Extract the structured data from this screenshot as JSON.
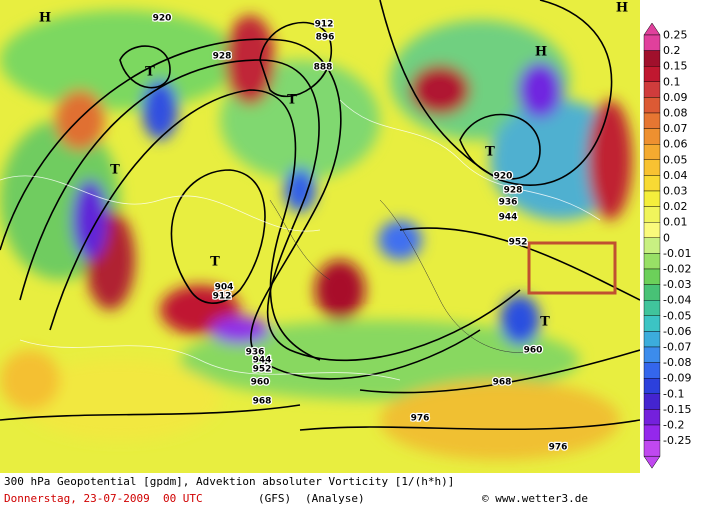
{
  "map": {
    "labels": [
      "H",
      "912",
      "T",
      "T",
      "T",
      "T",
      "T",
      "912",
      "920",
      "928",
      "936",
      "944",
      "952",
      "960",
      "968",
      "976",
      "920",
      "928",
      "936",
      "944",
      "952",
      "960",
      "968",
      "976",
      "H",
      "H",
      "T",
      "888",
      "896",
      "904"
    ]
  },
  "colorbar": {
    "labels": [
      "0.25",
      "0.2",
      "0.15",
      "0.1",
      "0.09",
      "0.08",
      "0.07",
      "0.06",
      "0.05",
      "0.04",
      "0.03",
      "0.02",
      "0.01",
      "0",
      "-0.01",
      "-0.02",
      "-0.03",
      "-0.04",
      "-0.05",
      "-0.06",
      "-0.07",
      "-0.08",
      "-0.09",
      "-0.1",
      "-0.15",
      "-0.2",
      "-0.25"
    ],
    "colors": [
      "#e0409c",
      "#a0102c",
      "#c01830",
      "#d03c3c",
      "#dc5a34",
      "#e67632",
      "#ee9030",
      "#f4aa30",
      "#f8c232",
      "#f8da34",
      "#f4ee3c",
      "#f0f45c",
      "#fafa7c",
      "#c8f082",
      "#98e066",
      "#6cd05a",
      "#48c276",
      "#40c49c",
      "#3cc4c4",
      "#3cacdc",
      "#3c8cec",
      "#3466ec",
      "#2c40dc",
      "#4424d0",
      "#7420dc",
      "#9428ec",
      "#c048f0"
    ]
  },
  "caption": {
    "line1": "300 hPa Geopotential [gpdm], Advektion absoluter Vorticity [1/(h*h)]",
    "date": "Donnerstag, 23-07-2009  00 UTC",
    "model": "(GFS)",
    "run": "(Analyse)",
    "credit": "© www.wetter3.de"
  }
}
